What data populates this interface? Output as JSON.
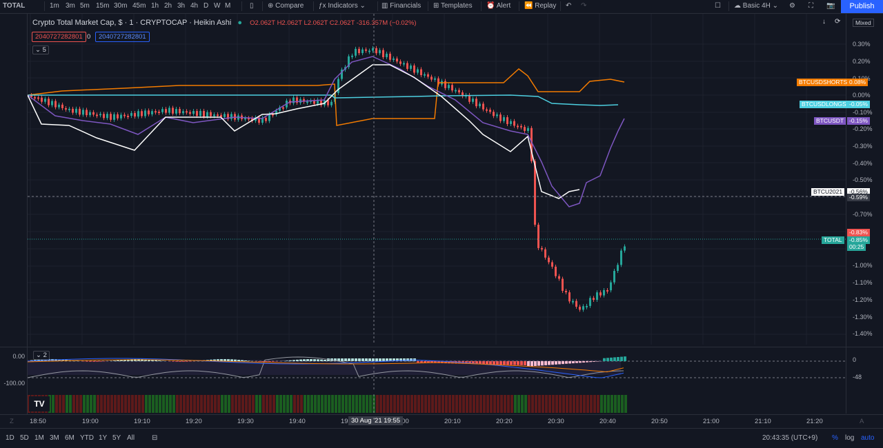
{
  "toolbar": {
    "symbol": "TOTAL",
    "timeframes": [
      "1m",
      "3m",
      "5m",
      "15m",
      "30m",
      "45m",
      "1h",
      "2h",
      "3h",
      "4h",
      "D",
      "W",
      "M"
    ],
    "active_timeframe": "1m",
    "compare_label": "Compare",
    "indicators_label": "Indicators",
    "financials_label": "Financials",
    "templates_label": "Templates",
    "alert_label": "Alert",
    "replay_label": "Replay",
    "layout_label": "Basic 4H",
    "publish_label": "Publish"
  },
  "legend": {
    "title": "Crypto Total Market Cap, $ · 1 · CRYPTOCAP · Heikin Ashi",
    "ohlc": "O2.062T H2.062T L2.062T C2.062T -316.357M (−0.02%)",
    "input1": "2040727282801",
    "input_mid": "0",
    "input2": "2040727282801",
    "collapse_count": "5",
    "scale_mode": "Mixed"
  },
  "price_axis": {
    "labels": [
      "0.30%",
      "0.20%",
      "0.10%",
      "0.00%",
      "-0.10%",
      "-0.20%",
      "-0.30%",
      "-0.40%",
      "-0.50%",
      "-0.70%",
      "-1.00%",
      "-1.10%",
      "-1.20%",
      "-1.30%",
      "-1.40%"
    ],
    "series_tags": [
      {
        "name": "BTCUSDSHORTS",
        "value": "0.08%",
        "color": "#f57c00"
      },
      {
        "name": "BTCUSDLONGS",
        "value": "-0.05%",
        "color": "#4dd0e1"
      },
      {
        "name": "BTCUSDT",
        "value": "-0.15%",
        "color": "#7e57c2"
      },
      {
        "name": "BTCU2021",
        "value": "-0.56%",
        "value2": "-0.59%",
        "color": "#ffffff"
      },
      {
        "name": "TOTAL",
        "value": "-0.83%",
        "value2": "-0.85%",
        "countdown": "00:25",
        "color": "#26a69a"
      }
    ]
  },
  "oscillator": {
    "collapse_count": "2",
    "left_labels": [
      "0.00",
      "-100.00"
    ],
    "right_labels": [
      "0",
      "-48"
    ]
  },
  "time_axis": {
    "labels": [
      "18:50",
      "19:00",
      "19:10",
      "19:20",
      "19:30",
      "19:40",
      "19:50",
      "20:00",
      "20:10",
      "20:20",
      "20:30",
      "20:40",
      "20:50",
      "21:00",
      "21:10",
      "21:20"
    ],
    "crosshair_label": "30 Aug '21 19:55"
  },
  "bottombar": {
    "ranges": [
      "1D",
      "5D",
      "1M",
      "3M",
      "6M",
      "YTD",
      "1Y",
      "5Y",
      "All"
    ],
    "clock": "20:43:35 (UTC+9)",
    "percent": "%",
    "log": "log",
    "auto": "auto"
  },
  "colors": {
    "up": "#26a69a",
    "down": "#ef5350",
    "bg": "#131722",
    "accent": "#2962ff"
  }
}
